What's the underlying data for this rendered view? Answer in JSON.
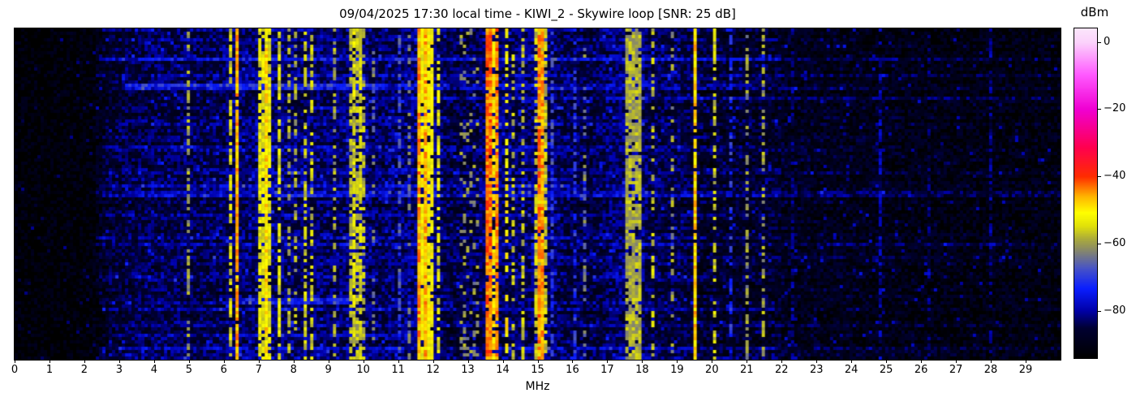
{
  "figure": {
    "title": "09/04/2025 17:30 local time - KIWI_2 - Skywire loop [SNR: 25 dB]",
    "xlabel": "MHz",
    "colorbar_label": "dBm"
  },
  "chart_data": {
    "type": "heatmap",
    "subtype": "radio-spectrogram-waterfall",
    "title": "09/04/2025 17:30 local time - KIWI_2 - Skywire loop [SNR: 25 dB]",
    "xlabel": "MHz",
    "x_range": [
      0,
      30
    ],
    "x_ticks": [
      0,
      1,
      2,
      3,
      4,
      5,
      6,
      7,
      8,
      9,
      10,
      11,
      12,
      13,
      14,
      15,
      16,
      17,
      18,
      19,
      20,
      21,
      22,
      23,
      24,
      25,
      26,
      27,
      28,
      29
    ],
    "y_axis": "time (no ticks shown)",
    "grid": false,
    "legend": "none",
    "colorbar": {
      "label": "dBm",
      "ticks": [
        0,
        -20,
        -40,
        -60,
        -80
      ],
      "vmin": -94,
      "vmax": 4,
      "position": "right"
    },
    "colormap_stops": [
      [
        0.0,
        "#000000"
      ],
      [
        0.09,
        "#000032"
      ],
      [
        0.143,
        "#0000a8"
      ],
      [
        0.21,
        "#0a1eff"
      ],
      [
        0.27,
        "#4652c8"
      ],
      [
        0.33,
        "#8c8c64"
      ],
      [
        0.36,
        "#aaaa3c"
      ],
      [
        0.4,
        "#e1e10a"
      ],
      [
        0.44,
        "#ffff00"
      ],
      [
        0.49,
        "#ffb400"
      ],
      [
        0.55,
        "#ff2d00"
      ],
      [
        0.64,
        "#ff0050"
      ],
      [
        0.755,
        "#f000d2"
      ],
      [
        0.86,
        "#ff5aff"
      ],
      [
        0.958,
        "#fbd2fb"
      ],
      [
        1.0,
        "#fbe6fb"
      ]
    ],
    "noise_floor_dbm_points": [
      [
        0,
        -93.5
      ],
      [
        2.2,
        -93
      ],
      [
        2.45,
        -90
      ],
      [
        2.6,
        -88
      ],
      [
        3.1,
        -86.5
      ],
      [
        4.2,
        -85
      ],
      [
        5.1,
        -84.5
      ],
      [
        5.35,
        -86
      ],
      [
        5.6,
        -84.5
      ],
      [
        6.5,
        -84
      ],
      [
        7.4,
        -83.5
      ],
      [
        9.9,
        -83.5
      ],
      [
        10.4,
        -84.5
      ],
      [
        11.4,
        -83
      ],
      [
        12.1,
        -83.5
      ],
      [
        12.5,
        -86
      ],
      [
        13.3,
        -85.5
      ],
      [
        13.5,
        -84
      ],
      [
        14.8,
        -84
      ],
      [
        15.3,
        -83.5
      ],
      [
        15.9,
        -85
      ],
      [
        16.6,
        -86
      ],
      [
        17.1,
        -84
      ],
      [
        17.9,
        -83
      ],
      [
        18.3,
        -85.5
      ],
      [
        19.2,
        -86
      ],
      [
        19.7,
        -87.5
      ],
      [
        21.8,
        -88
      ],
      [
        22.5,
        -89
      ],
      [
        25,
        -89.5
      ],
      [
        26.5,
        -90.5
      ],
      [
        30,
        -91
      ]
    ],
    "signal_bands": [
      [
        2.49,
        2.53,
        -83,
        0.85
      ],
      [
        2.72,
        2.75,
        -85,
        0.5
      ],
      [
        3.18,
        3.22,
        -84,
        0.5
      ],
      [
        3.58,
        3.62,
        -84,
        0.5
      ],
      [
        3.83,
        3.87,
        -84,
        0.45
      ],
      [
        4.09,
        4.13,
        -83,
        0.5
      ],
      [
        4.25,
        4.31,
        -48,
        0.97
      ],
      [
        4.45,
        4.48,
        -62,
        0.3
      ],
      [
        4.62,
        4.68,
        -55,
        0.6
      ],
      [
        4.98,
        5.04,
        -60,
        0.45
      ],
      [
        5.22,
        5.25,
        -67,
        0.8
      ],
      [
        5.28,
        5.31,
        -67,
        0.8
      ],
      [
        5.73,
        5.78,
        -64,
        0.4
      ],
      [
        5.95,
        6.0,
        -62,
        0.35
      ],
      [
        6.18,
        6.25,
        -56,
        0.6
      ],
      [
        6.32,
        6.39,
        -46,
        0.95
      ],
      [
        6.6,
        6.65,
        -61,
        0.4
      ],
      [
        6.78,
        6.83,
        -59,
        0.45
      ],
      [
        7.0,
        7.35,
        -54,
        0.85
      ],
      [
        7.05,
        7.1,
        -48,
        0.9
      ],
      [
        7.18,
        7.24,
        -49,
        0.85
      ],
      [
        7.42,
        7.46,
        -61,
        0.4
      ],
      [
        7.56,
        7.64,
        -55,
        0.7
      ],
      [
        7.82,
        7.88,
        -59,
        0.45
      ],
      [
        8.0,
        8.06,
        -59,
        0.4
      ],
      [
        8.32,
        8.4,
        -56,
        0.55
      ],
      [
        8.48,
        8.56,
        -56,
        0.5
      ],
      [
        8.62,
        8.7,
        -57,
        0.5
      ],
      [
        9.12,
        9.18,
        -59,
        0.4
      ],
      [
        9.55,
        9.95,
        -58,
        0.65
      ],
      [
        9.6,
        9.64,
        -54,
        0.7
      ],
      [
        9.73,
        9.78,
        -54,
        0.65
      ],
      [
        9.88,
        9.93,
        -55,
        0.6
      ],
      [
        10.0,
        10.07,
        -58,
        0.45
      ],
      [
        10.25,
        10.31,
        -64,
        0.35
      ],
      [
        11.0,
        11.06,
        -68,
        0.45
      ],
      [
        11.27,
        11.32,
        -64,
        0.35
      ],
      [
        11.55,
        12.05,
        -52,
        0.85
      ],
      [
        11.59,
        11.64,
        -45,
        0.9
      ],
      [
        11.75,
        11.8,
        -46,
        0.85
      ],
      [
        11.88,
        11.93,
        -44,
        0.9
      ],
      [
        11.99,
        12.04,
        -47,
        0.85
      ],
      [
        12.15,
        12.2,
        -55,
        0.5
      ],
      [
        12.75,
        13.35,
        -61,
        0.18
      ],
      [
        13.55,
        13.65,
        -43,
        0.93
      ],
      [
        13.68,
        13.75,
        -50,
        0.7
      ],
      [
        13.78,
        13.87,
        -44,
        0.9
      ],
      [
        14.05,
        14.12,
        -51,
        0.55
      ],
      [
        14.3,
        14.37,
        -57,
        0.4
      ],
      [
        14.55,
        14.62,
        -57,
        0.4
      ],
      [
        14.95,
        15.3,
        -57,
        0.7
      ],
      [
        15.0,
        15.09,
        -44,
        0.95
      ],
      [
        15.13,
        15.22,
        -45,
        0.92
      ],
      [
        15.38,
        15.44,
        -69,
        0.5
      ],
      [
        16.0,
        16.1,
        -71,
        0.5
      ],
      [
        16.33,
        16.38,
        -63,
        0.35
      ],
      [
        17.48,
        17.97,
        -59,
        0.85
      ],
      [
        17.68,
        17.74,
        -42,
        0.75
      ],
      [
        17.77,
        17.83,
        -30,
        0.97
      ],
      [
        18.05,
        18.11,
        -67,
        0.5
      ],
      [
        18.25,
        18.31,
        -56,
        0.5
      ],
      [
        18.83,
        18.89,
        -60,
        0.35
      ],
      [
        19.03,
        19.07,
        -84,
        0.6
      ],
      [
        19.45,
        19.53,
        -48,
        0.92
      ],
      [
        20.03,
        20.1,
        -56,
        0.45
      ],
      [
        20.5,
        20.56,
        -71,
        0.45
      ],
      [
        20.95,
        21.03,
        -61,
        0.5
      ],
      [
        21.45,
        21.53,
        -59,
        0.5
      ],
      [
        21.58,
        21.64,
        -67,
        0.5
      ],
      [
        22.3,
        22.34,
        -82,
        0.5
      ],
      [
        24.0,
        24.04,
        -82,
        0.5
      ],
      [
        24.78,
        24.83,
        -80,
        0.6
      ],
      [
        26.2,
        26.26,
        -83,
        0.45
      ],
      [
        27.95,
        28.06,
        -81,
        0.5
      ],
      [
        28.4,
        28.45,
        -83,
        0.4
      ]
    ],
    "broadband_bursts": [
      {
        "t": 0.17,
        "f0": 3.2,
        "f1": 10.6,
        "boost": 12
      },
      {
        "t": 0.17,
        "f0": 10.6,
        "f1": 21.5,
        "boost": 5
      },
      {
        "t": 0.215,
        "f0": 10.0,
        "f1": 30,
        "boost": 5
      },
      {
        "t": 0.48,
        "f0": 2.4,
        "f1": 16,
        "boost": 3.5
      },
      {
        "t": 0.565,
        "f0": 2.4,
        "f1": 22,
        "boost": 3
      },
      {
        "t": 0.82,
        "f0": 6.3,
        "f1": 9.8,
        "boost": 10
      },
      {
        "t": 0.825,
        "f0": 2.4,
        "f1": 22,
        "boost": 3
      },
      {
        "t": 0.93,
        "f0": 3.0,
        "f1": 12,
        "boost": 4
      }
    ],
    "seed": 1337
  }
}
